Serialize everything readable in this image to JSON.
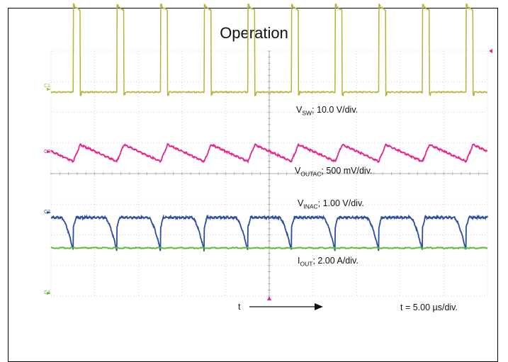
{
  "chart_data": {
    "type": "line",
    "title": "Operation",
    "x_unit": "µs",
    "time_per_div": "t = 5.00 µs/div.",
    "time_axis_label": "t",
    "divisions": {
      "x": 10,
      "y": 8
    },
    "switching_period_us": 5.0,
    "duty_cycle": 0.16,
    "background": "#ffffff",
    "grid": "dotted, with tick-marked center crosshair",
    "series": [
      {
        "name": "V_SW",
        "label_main": "V",
        "label_sub": "SW",
        "label_rest": "; 10.0 V/div.",
        "channel": "C1",
        "color": "#b5b53a",
        "waveform": "square",
        "scale_per_div": "10.0 V/div.",
        "low_div": 0,
        "high_div": 2.8,
        "high_sag_div": 0.12
      },
      {
        "name": "V_OUTAC",
        "label_main": "V",
        "label_sub": "OUTAC",
        "label_rest": "; 500 mV/div.",
        "channel": "C3",
        "color": "#e8268a",
        "waveform": "triangle",
        "scale_per_div": "500 mV/div.",
        "ripple_pp_div": 0.55
      },
      {
        "name": "V_INAC",
        "label_main": "V",
        "label_sub": "INAC",
        "label_rest": "; 1.00 V/div.",
        "channel": "C2",
        "color": "#2c4da5",
        "waveform": "sawtooth-dip",
        "scale_per_div": "1.00 V/div.",
        "dip_div": 1.1
      },
      {
        "name": "I_OUT",
        "label_main": "I",
        "label_sub": "OUT",
        "label_rest": "; 2.00 A/div.",
        "channel": "C4",
        "color": "#5dbb3a",
        "waveform": "dc",
        "scale_per_div": "2.00 A/div.",
        "level_div": 2.9
      }
    ],
    "channel_markers": [
      "C1",
      "C3",
      "C2",
      "C4"
    ],
    "trigger_color": "#e8268a"
  }
}
